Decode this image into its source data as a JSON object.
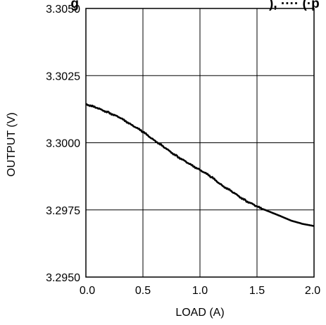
{
  "chart_data": {
    "type": "line",
    "title": "g",
    "title_right": "), ···· (·p",
    "xlabel": "LOAD (A)",
    "ylabel": "OUTPUT (V)",
    "xlim": [
      0.0,
      2.0
    ],
    "ylim": [
      3.295,
      3.305
    ],
    "x_ticks": [
      "0.0",
      "0.5",
      "1.0",
      "1.5",
      "2.0"
    ],
    "y_ticks": [
      "3.2950",
      "3.2975",
      "3.3000",
      "3.3025",
      "3.3050"
    ],
    "grid": true,
    "series": [
      {
        "x": [
          0.0,
          0.1,
          0.2,
          0.3,
          0.4,
          0.5,
          0.6,
          0.7,
          0.8,
          0.9,
          1.0,
          1.1,
          1.2,
          1.3,
          1.4,
          1.5,
          1.6,
          1.7,
          1.8,
          1.9,
          2.0
        ],
        "y": [
          3.30145,
          3.30128,
          3.30113,
          3.30092,
          3.30068,
          3.3004,
          3.3001,
          3.29978,
          3.2995,
          3.29922,
          3.299,
          3.29872,
          3.2984,
          3.29812,
          3.29785,
          3.29762,
          3.29745,
          3.29728,
          3.2971,
          3.29698,
          3.2969
        ]
      }
    ],
    "line_color": "#000000",
    "grid_color": "#000000"
  }
}
